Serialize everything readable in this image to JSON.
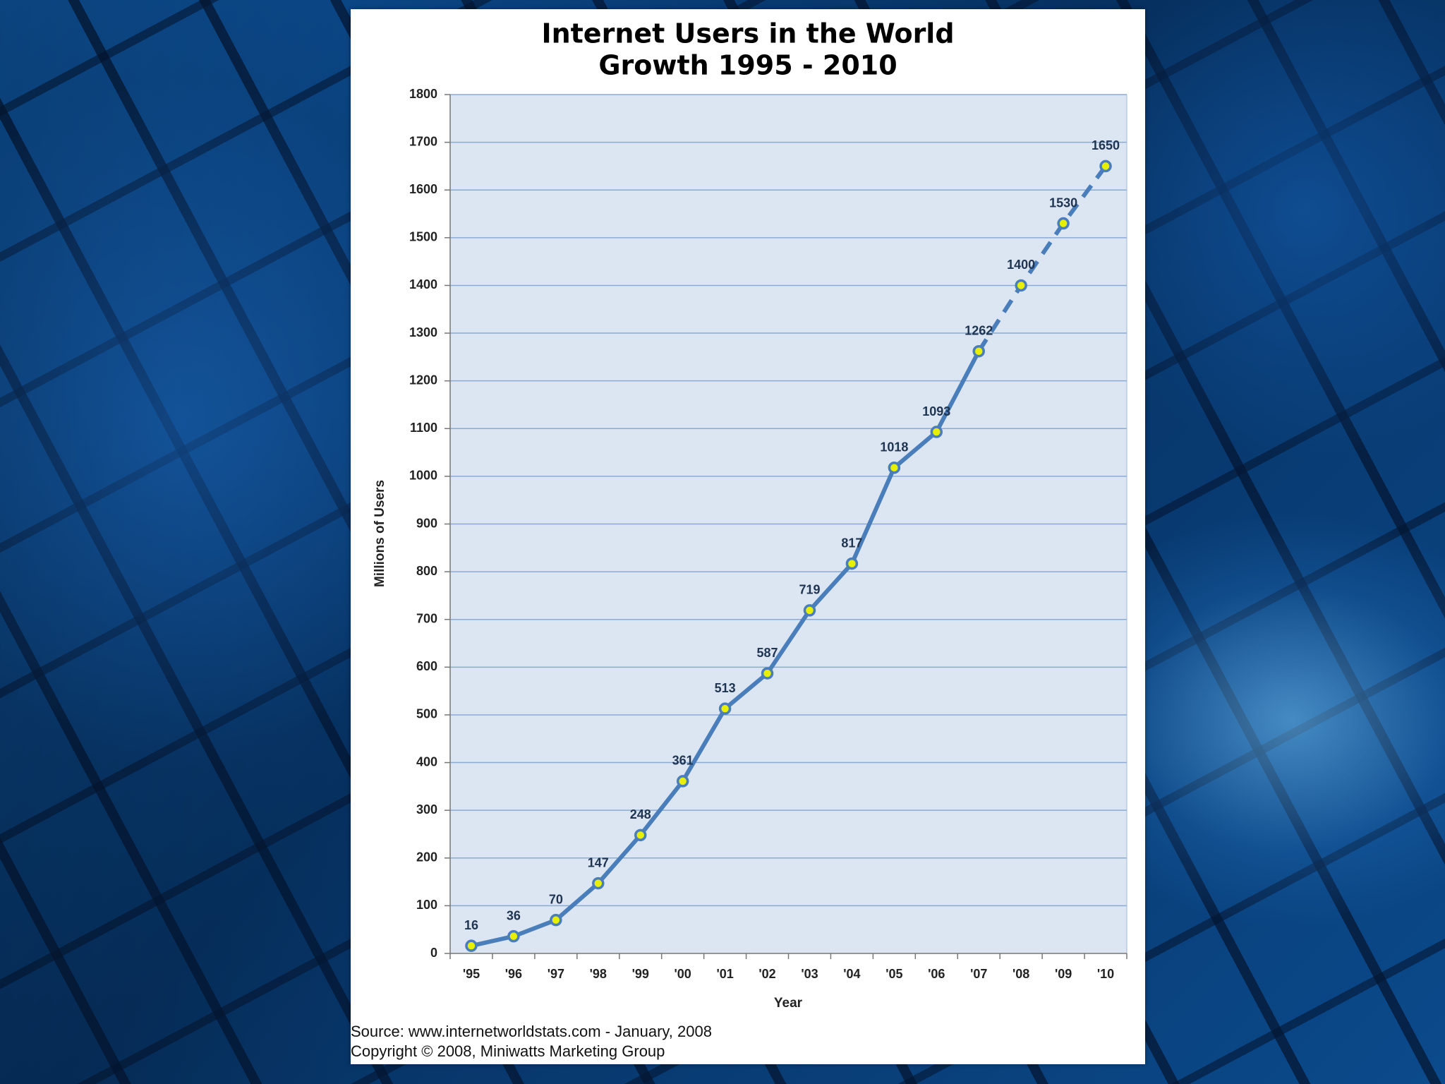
{
  "chart_data": {
    "type": "line",
    "title": "Internet Users in the World",
    "subtitle": "Growth 1995 - 2010",
    "xlabel": "Year",
    "ylabel": "Millions of Users",
    "ylim": [
      0,
      1800
    ],
    "yticks": [
      0,
      100,
      200,
      300,
      400,
      500,
      600,
      700,
      800,
      900,
      1000,
      1100,
      1200,
      1300,
      1400,
      1500,
      1600,
      1700,
      1800
    ],
    "categories": [
      "'95",
      "'96",
      "'97",
      "'98",
      "'99",
      "'00",
      "'01",
      "'02",
      "'03",
      "'04",
      "'05",
      "'06",
      "'07",
      "'08",
      "'09",
      "'10"
    ],
    "series": [
      {
        "values": [
          16,
          36,
          70,
          147,
          248,
          361,
          513,
          587,
          719,
          817,
          1018,
          1093,
          1262,
          1400,
          1530,
          1650
        ],
        "labels": [
          "16",
          "36",
          "70",
          "147",
          "248",
          "361",
          "513",
          "587",
          "719",
          "817",
          "1018",
          "1093",
          "1262",
          "1400",
          "1530",
          "1650"
        ],
        "projected_from_index": 12
      }
    ],
    "grid": true,
    "legend": "none",
    "line_color": "#4a7ebb",
    "marker_fill": "#e8f000",
    "plot_background": "#dce6f2",
    "gridline_color": "#8aaad6"
  },
  "source": {
    "line1": "Source: www.internetworldstats.com - January, 2008",
    "line2": "Copyright © 2008, Miniwatts Marketing Group"
  }
}
